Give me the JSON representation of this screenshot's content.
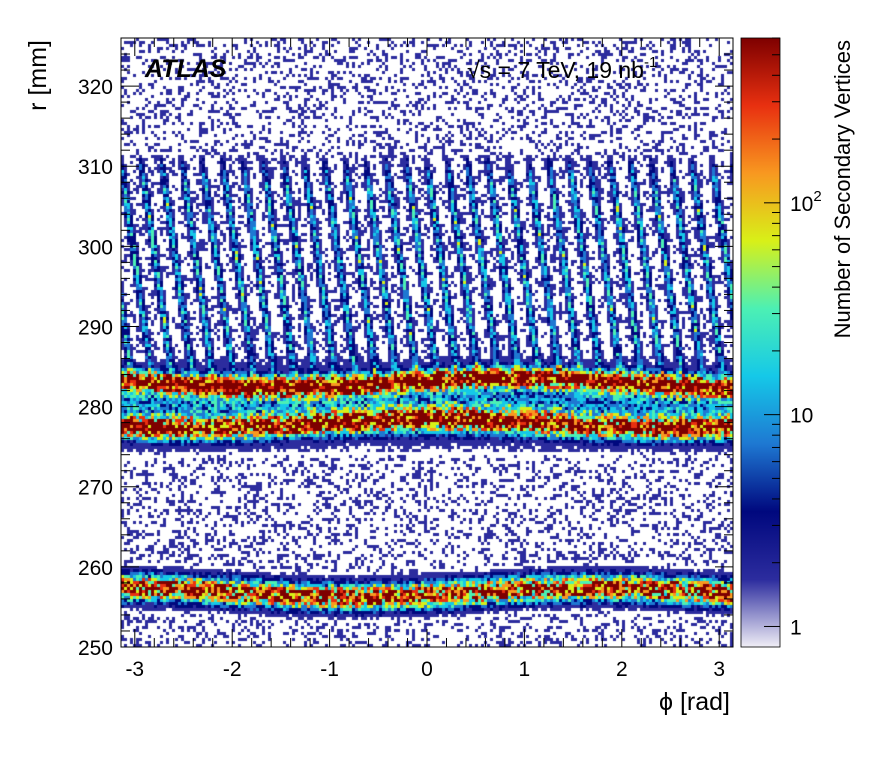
{
  "chart_data": {
    "type": "heatmap",
    "experiment_label": "ATLAS",
    "energy_label_prefix": "√s = 7 TeV, 19 nb",
    "energy_label_sup": "-1",
    "xlabel": "ϕ [rad]",
    "ylabel": "r [mm]",
    "zlabel": "Number of Secondary Vertices",
    "xlim": [
      -3.14159,
      3.14159
    ],
    "ylim": [
      250,
      326
    ],
    "zlim": [
      0.8,
      600
    ],
    "z_scale": "log",
    "x_ticks": [
      {
        "value": -3,
        "label": "-3"
      },
      {
        "value": -2,
        "label": "-2"
      },
      {
        "value": -1,
        "label": "-1"
      },
      {
        "value": 0,
        "label": "0"
      },
      {
        "value": 1,
        "label": "1"
      },
      {
        "value": 2,
        "label": "2"
      },
      {
        "value": 3,
        "label": "3"
      }
    ],
    "y_ticks": [
      {
        "value": 250,
        "label": "250"
      },
      {
        "value": 260,
        "label": "260"
      },
      {
        "value": 270,
        "label": "270"
      },
      {
        "value": 280,
        "label": "280"
      },
      {
        "value": 290,
        "label": "290"
      },
      {
        "value": 300,
        "label": "300"
      },
      {
        "value": 310,
        "label": "310"
      },
      {
        "value": 320,
        "label": "320"
      }
    ],
    "z_ticks": [
      {
        "value": 1,
        "label": "1"
      },
      {
        "value": 10,
        "label": "10"
      },
      {
        "value": 100,
        "label": "10",
        "sup": "2"
      }
    ],
    "bands": [
      {
        "feature": "barrel-layer",
        "r": 257.0,
        "width": 1.6,
        "level": 9
      },
      {
        "feature": "barrel-layer",
        "r": 278.0,
        "width": 1.4,
        "level": 8
      },
      {
        "feature": "barrel-layer",
        "r": 283.2,
        "width": 1.2,
        "level": 9
      },
      {
        "feature": "diffuse",
        "r": 280.5,
        "width": 4.0,
        "level": 3
      }
    ],
    "staves": {
      "count": 30,
      "r_min": 283,
      "r_max": 312,
      "level": 4
    },
    "colormap": [
      "#f0eef6",
      "#2c2c9e",
      "#00087e",
      "#1e78d2",
      "#15c8e8",
      "#4cf0b4",
      "#d8f018",
      "#f89820",
      "#e83010",
      "#7e0000"
    ]
  }
}
